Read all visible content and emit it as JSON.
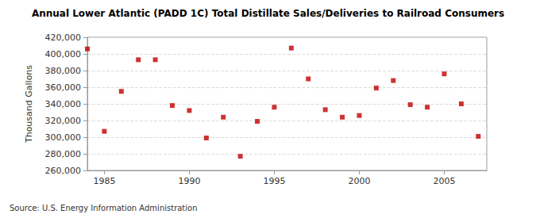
{
  "chart_data": {
    "type": "scatter",
    "title": "Annual Lower Atlantic (PADD 1C) Total Distillate Sales/Deliveries to Railroad Consumers",
    "y_label": "Thousand Gallons",
    "source": "Source: U.S. Energy Information Administration",
    "x": [
      1984,
      1985,
      1986,
      1987,
      1988,
      1989,
      1990,
      1991,
      1992,
      1993,
      1994,
      1995,
      1996,
      1997,
      1998,
      1999,
      2000,
      2001,
      2002,
      2003,
      2004,
      2005,
      2006,
      2007
    ],
    "values": [
      406000,
      307000,
      355000,
      393000,
      393000,
      338000,
      332000,
      299000,
      324000,
      277000,
      319000,
      336000,
      407000,
      370000,
      333000,
      324000,
      326000,
      359000,
      368000,
      339000,
      336000,
      376000,
      340000,
      301000
    ],
    "color": "#c00000",
    "marker": "square",
    "xlim": [
      1984,
      2007.5
    ],
    "xticks": [
      1985,
      1990,
      1995,
      2000,
      2005
    ],
    "ylim": [
      260000,
      420000
    ],
    "yticks": [
      {
        "value": 260000,
        "label": "260,000"
      },
      {
        "value": 280000,
        "label": "280,000"
      },
      {
        "value": 300000,
        "label": "300,000"
      },
      {
        "value": 320000,
        "label": "320,000"
      },
      {
        "value": 340000,
        "label": "340,000"
      },
      {
        "value": 360000,
        "label": "360,000"
      },
      {
        "value": 380000,
        "label": "380,000"
      },
      {
        "value": 400000,
        "label": "400,000"
      },
      {
        "value": 420000,
        "label": "420,000"
      }
    ],
    "grid": true
  }
}
